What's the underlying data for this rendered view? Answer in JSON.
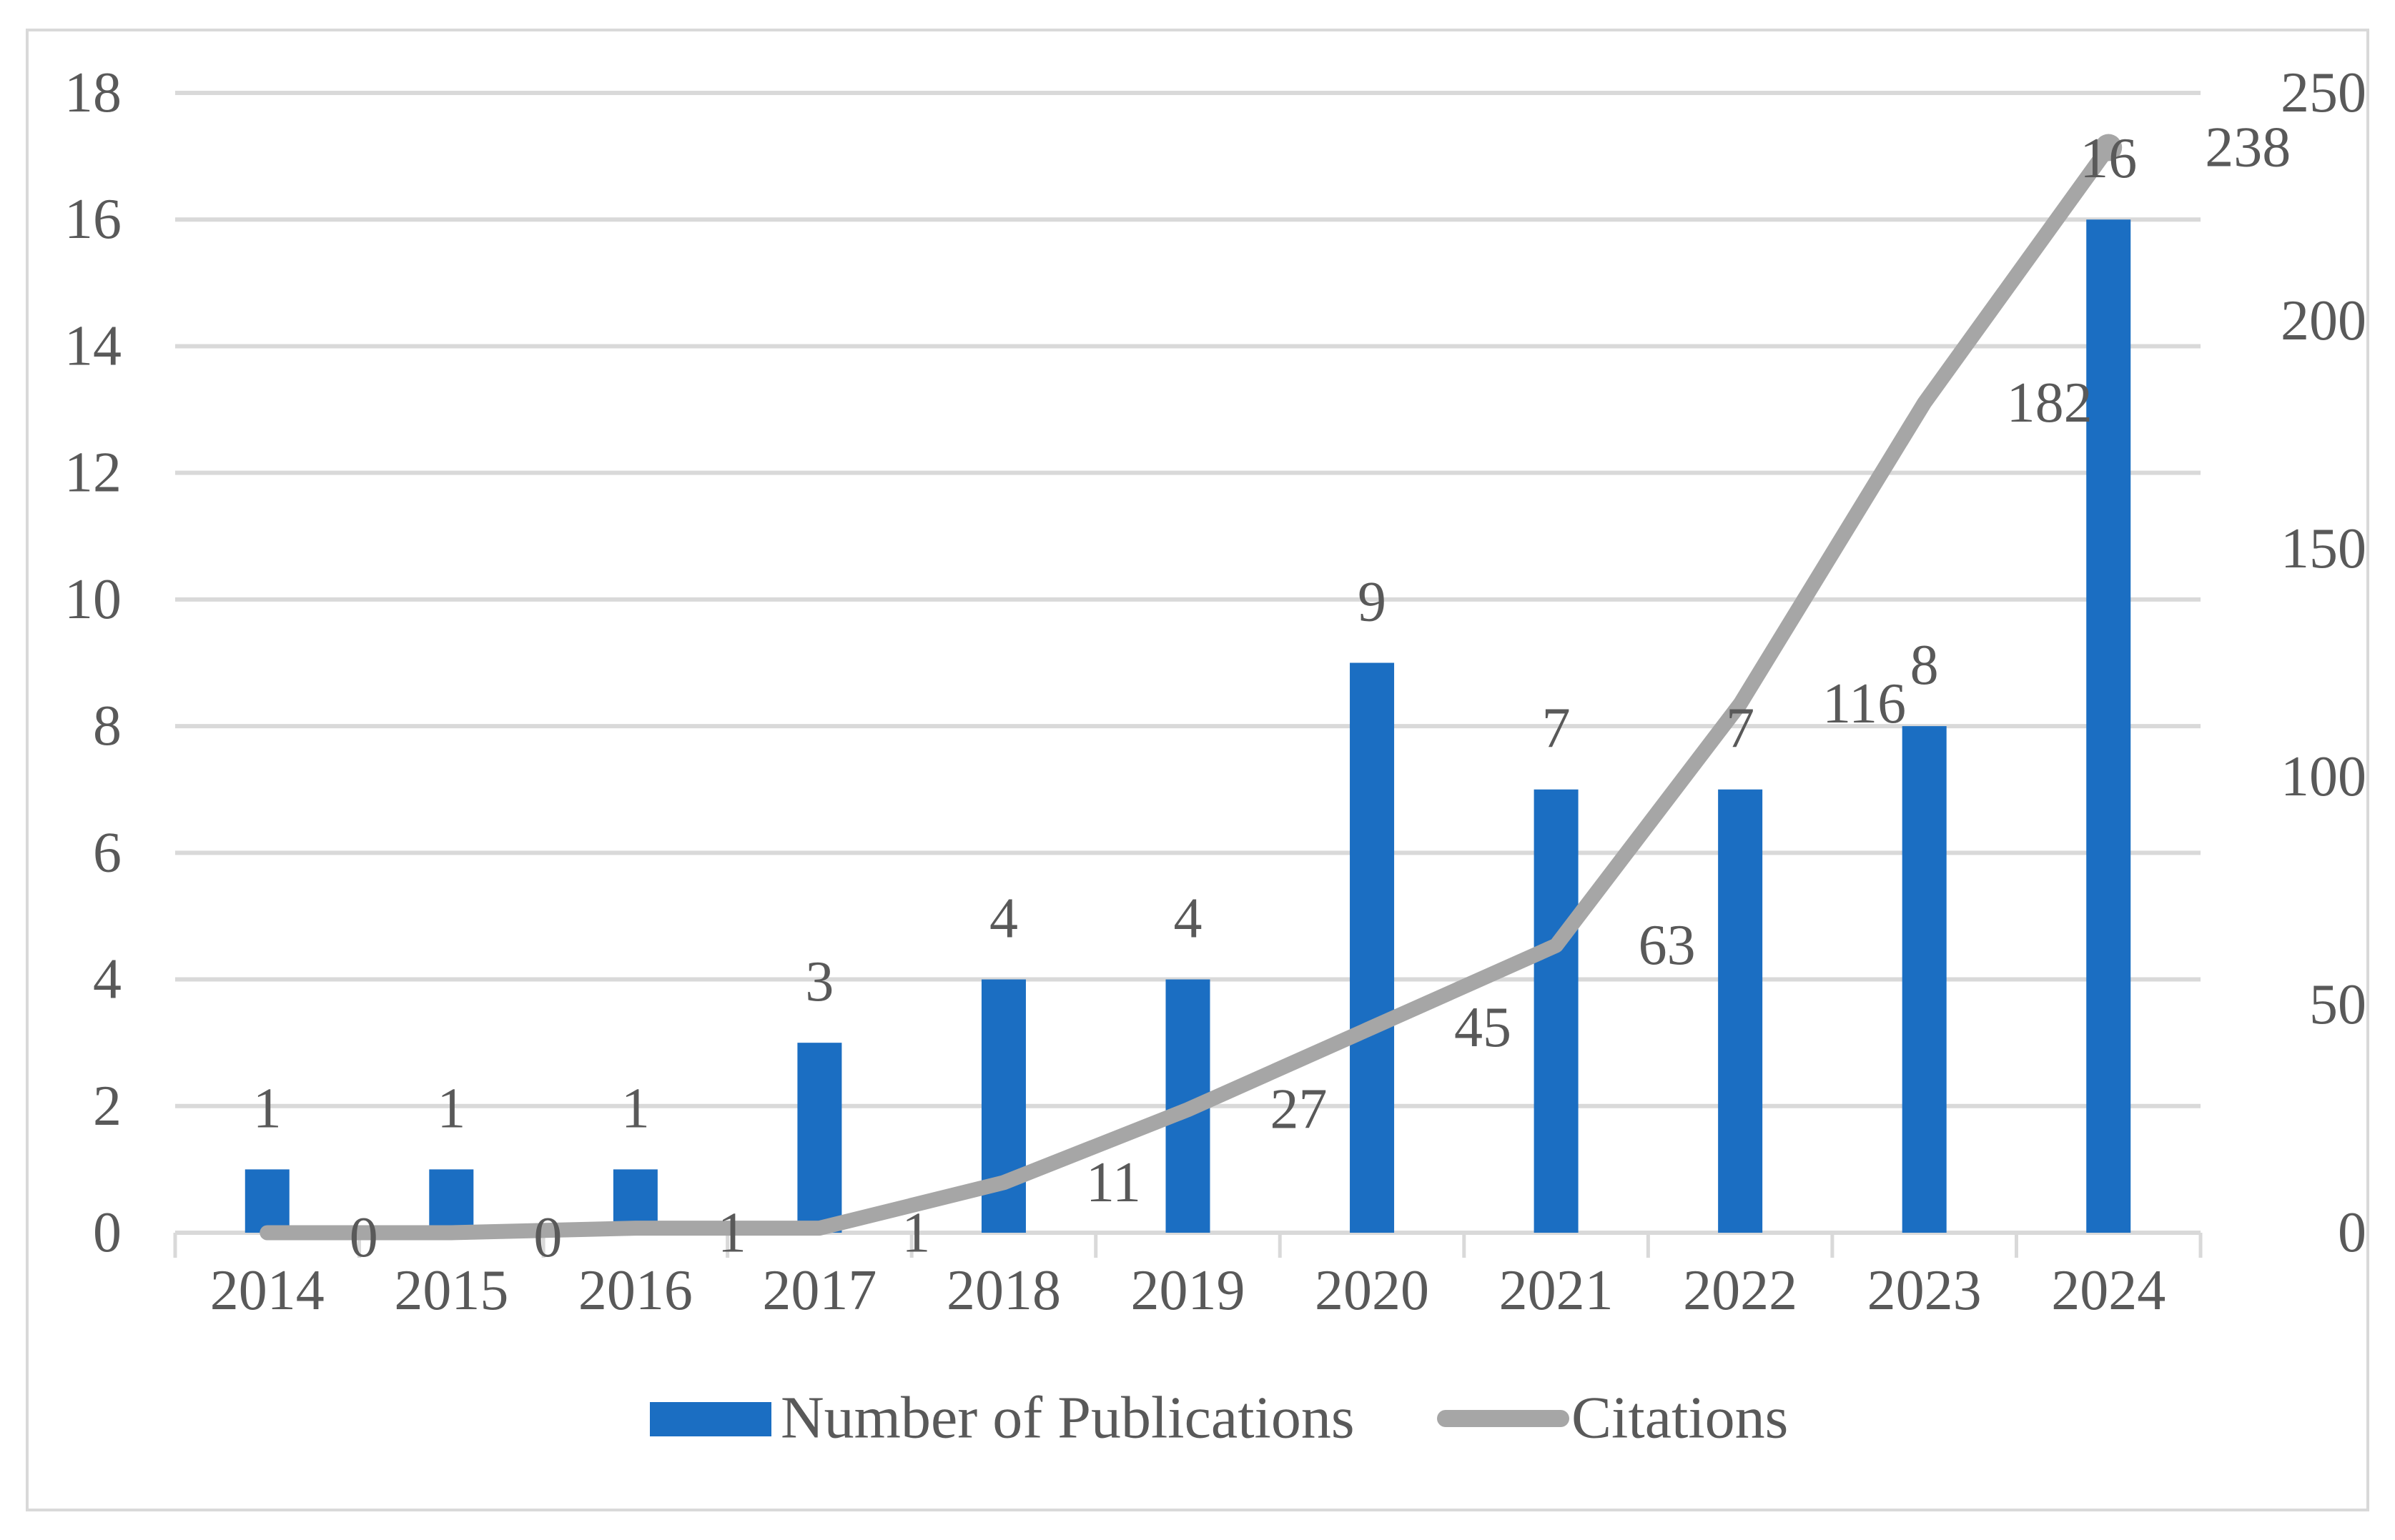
{
  "chart_data": {
    "type": "combo",
    "title": "",
    "categories": [
      "2014",
      "2015",
      "2016",
      "2017",
      "2018",
      "2019",
      "2020",
      "2021",
      "2022",
      "2023",
      "2024"
    ],
    "series": [
      {
        "name": "Number of Publications",
        "chart_type": "bar",
        "axis": "left",
        "color": "#1B6EC2",
        "values": [
          1,
          1,
          1,
          3,
          4,
          4,
          9,
          7,
          7,
          8,
          16
        ],
        "data_labels": [
          "1",
          "1",
          "1",
          "3",
          "4",
          "4",
          "9",
          "7",
          "7",
          "8",
          "16"
        ]
      },
      {
        "name": "Citations",
        "chart_type": "line",
        "axis": "right",
        "color": "#A6A6A6",
        "values": [
          0,
          0,
          1,
          1,
          11,
          27,
          45,
          63,
          116,
          182,
          238
        ],
        "data_labels": [
          "0",
          "0",
          "1",
          "1",
          "11",
          "27",
          "45",
          "63",
          "116",
          "182",
          "238"
        ]
      }
    ],
    "left_axis": {
      "min": 0,
      "max": 18,
      "step": 2,
      "ticks": [
        "0",
        "2",
        "4",
        "6",
        "8",
        "10",
        "12",
        "14",
        "16",
        "18"
      ]
    },
    "right_axis": {
      "min": 0,
      "max": 250,
      "step": 50,
      "ticks": [
        "0",
        "50",
        "100",
        "150",
        "200",
        "250"
      ]
    },
    "grid": true,
    "legend_position": "bottom",
    "legend": [
      "Number of Publications",
      "Citations"
    ]
  },
  "style": {
    "background": "#FFFFFF",
    "border_color": "#D9D9D9",
    "grid_color": "#D9D9D9",
    "tick_color": "#D9D9D9",
    "text_color": "#595959",
    "bar_color": "#1B6EC2",
    "line_color": "#A6A6A6"
  }
}
